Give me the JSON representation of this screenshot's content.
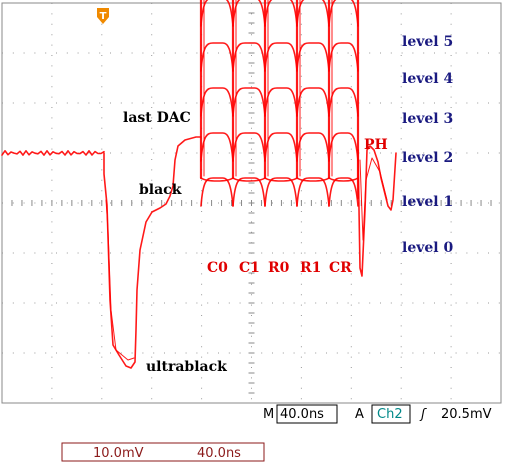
{
  "chart_data": {
    "type": "line",
    "title": "",
    "xlabel": "",
    "ylabel": "",
    "grid": true,
    "x_divisions": 10,
    "y_divisions": 8,
    "time_per_div_ns": 40.0,
    "volts_per_div_mv": 10.0,
    "trigger_marker": "T",
    "baseline_div": 5.0,
    "segments": [
      {
        "name": "black",
        "x": [
          0.0,
          2.5
        ],
        "level_div": 5.0
      },
      {
        "name": "ultrablack",
        "x": [
          2.7,
          3.3
        ],
        "level_div": 1.1
      },
      {
        "name": "last DAC",
        "x": [
          4.3,
          5.0
        ],
        "level_div": 6.5
      }
    ],
    "symbols": [
      "C0",
      "C1",
      "R0",
      "R1",
      "CR"
    ],
    "phase_label": "PH",
    "levels": [
      {
        "label": "level 5",
        "div": 9.0
      },
      {
        "label": "level 4",
        "div": 8.1
      },
      {
        "label": "level 3",
        "div": 7.2
      },
      {
        "label": "level 2",
        "div": 6.3
      },
      {
        "label": "level 1",
        "div": 5.4
      },
      {
        "label": "level 0",
        "div": 4.5
      }
    ],
    "annotations": {
      "last_dac": "last DAC",
      "black": "black",
      "ultrablack": "ultrablack"
    },
    "colors": {
      "trace": "#ff0000",
      "level_text": "#1a1a80",
      "symbol_text": "#e00000",
      "trigger": "#f08a00"
    }
  },
  "status_bar": {
    "timebase_prefix": "M",
    "timebase_value": "40.0ns",
    "trigger_mode": "A",
    "trigger_channel": "Ch2",
    "trigger_slope_symbol": "ʃ",
    "trigger_level": "20.5mV"
  },
  "channel_readout": {
    "volts_per_div": "10.0mV",
    "time_per_div": "40.0ns"
  }
}
